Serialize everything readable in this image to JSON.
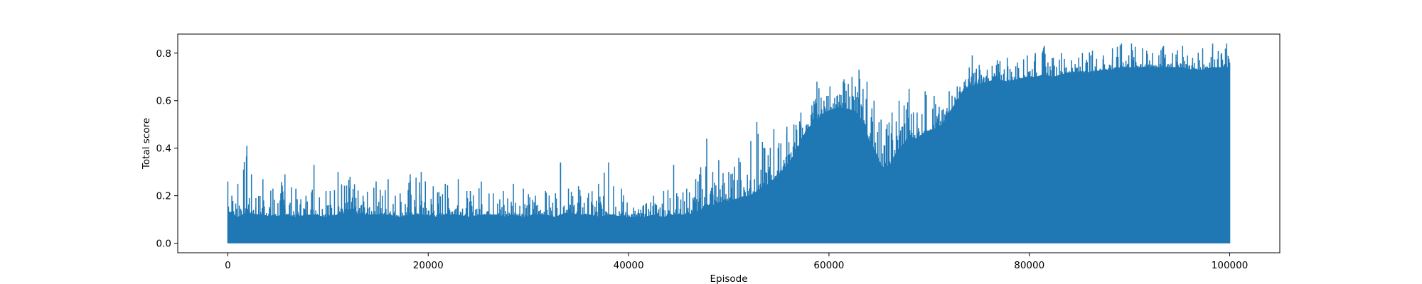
{
  "chart_data": {
    "type": "line",
    "title": "",
    "xlabel": "Episode",
    "ylabel": "Total score",
    "xlim": [
      -5000,
      105000
    ],
    "ylim": [
      -0.04,
      0.88
    ],
    "x_ticks": [
      0,
      20000,
      40000,
      60000,
      80000,
      100000
    ],
    "x_tick_labels": [
      "0",
      "20000",
      "40000",
      "60000",
      "80000",
      "100000"
    ],
    "y_ticks": [
      0.0,
      0.2,
      0.4,
      0.6,
      0.8
    ],
    "y_tick_labels": [
      "0.0",
      "0.2",
      "0.4",
      "0.6",
      "0.8"
    ],
    "grid": false,
    "legend": "none",
    "color": "#1f77b4",
    "series": [
      {
        "description": "per-episode total score; plotted as dense line oscillating between 0 and the upper envelope",
        "x": [
          0,
          400,
          1000,
          1900,
          2800,
          3500,
          4500,
          5700,
          6800,
          7800,
          8600,
          9800,
          11000,
          12200,
          13500,
          14800,
          16000,
          17200,
          18200,
          19300,
          20500,
          21700,
          23000,
          24200,
          25300,
          26500,
          27500,
          28500,
          29500,
          30700,
          31700,
          32700,
          33200,
          34000,
          35000,
          36000,
          37000,
          38000,
          38500,
          39300,
          40500,
          41500,
          42500,
          43500,
          44500,
          44800,
          45800,
          46700,
          47200,
          47800,
          48400,
          49000,
          50000,
          51000,
          52200,
          52800,
          53600,
          54500,
          55200,
          55800,
          56500,
          57200,
          57800,
          58300,
          58800,
          59500,
          60100,
          60800,
          61500,
          62300,
          63000,
          63400,
          63800,
          64500,
          65200,
          65800,
          66300,
          67000,
          67500,
          68000,
          68800,
          69600,
          70500,
          71300,
          72000,
          72800,
          73500,
          74300,
          75000,
          75800,
          76800,
          77800,
          78800,
          79800,
          80600,
          81500,
          82400,
          83200,
          84200,
          85300,
          86300,
          87400,
          88300,
          89200,
          90200,
          91300,
          92300,
          93400,
          94300,
          95300,
          96300,
          97300,
          98300,
          99200,
          99700,
          100000
        ],
        "y_upper": [
          0.26,
          0.2,
          0.25,
          0.41,
          0.19,
          0.27,
          0.23,
          0.29,
          0.23,
          0.2,
          0.33,
          0.22,
          0.3,
          0.28,
          0.2,
          0.26,
          0.27,
          0.21,
          0.29,
          0.3,
          0.24,
          0.25,
          0.27,
          0.22,
          0.26,
          0.21,
          0.22,
          0.25,
          0.23,
          0.2,
          0.22,
          0.21,
          0.34,
          0.23,
          0.24,
          0.21,
          0.25,
          0.34,
          0.24,
          0.23,
          0.15,
          0.16,
          0.2,
          0.22,
          0.33,
          0.21,
          0.23,
          0.27,
          0.32,
          0.44,
          0.3,
          0.35,
          0.3,
          0.36,
          0.43,
          0.51,
          0.4,
          0.48,
          0.42,
          0.49,
          0.5,
          0.55,
          0.5,
          0.58,
          0.68,
          0.6,
          0.66,
          0.62,
          0.69,
          0.7,
          0.73,
          0.65,
          0.68,
          0.6,
          0.52,
          0.5,
          0.55,
          0.6,
          0.58,
          0.65,
          0.55,
          0.64,
          0.62,
          0.56,
          0.64,
          0.66,
          0.68,
          0.79,
          0.75,
          0.73,
          0.77,
          0.78,
          0.76,
          0.79,
          0.8,
          0.83,
          0.78,
          0.8,
          0.77,
          0.8,
          0.81,
          0.79,
          0.82,
          0.84,
          0.84,
          0.82,
          0.8,
          0.83,
          0.8,
          0.83,
          0.78,
          0.82,
          0.84,
          0.8,
          0.84,
          0.76
        ],
        "y_baseline": [
          0.14,
          0.12,
          0.11,
          0.13,
          0.12,
          0.12,
          0.11,
          0.12,
          0.11,
          0.12,
          0.12,
          0.11,
          0.12,
          0.13,
          0.12,
          0.12,
          0.12,
          0.11,
          0.12,
          0.12,
          0.11,
          0.12,
          0.12,
          0.11,
          0.12,
          0.12,
          0.11,
          0.12,
          0.11,
          0.12,
          0.12,
          0.11,
          0.12,
          0.13,
          0.12,
          0.12,
          0.11,
          0.12,
          0.12,
          0.11,
          0.11,
          0.11,
          0.12,
          0.11,
          0.12,
          0.12,
          0.12,
          0.13,
          0.14,
          0.16,
          0.16,
          0.17,
          0.18,
          0.19,
          0.2,
          0.22,
          0.24,
          0.27,
          0.3,
          0.33,
          0.37,
          0.43,
          0.48,
          0.5,
          0.52,
          0.55,
          0.56,
          0.57,
          0.57,
          0.56,
          0.54,
          0.5,
          0.45,
          0.4,
          0.33,
          0.3,
          0.35,
          0.4,
          0.42,
          0.45,
          0.44,
          0.47,
          0.48,
          0.5,
          0.55,
          0.6,
          0.65,
          0.66,
          0.67,
          0.68,
          0.69,
          0.68,
          0.69,
          0.7,
          0.7,
          0.71,
          0.7,
          0.71,
          0.72,
          0.72,
          0.72,
          0.73,
          0.73,
          0.74,
          0.74,
          0.74,
          0.74,
          0.74,
          0.74,
          0.74,
          0.73,
          0.73,
          0.74,
          0.74,
          0.74,
          0.74
        ]
      }
    ]
  }
}
